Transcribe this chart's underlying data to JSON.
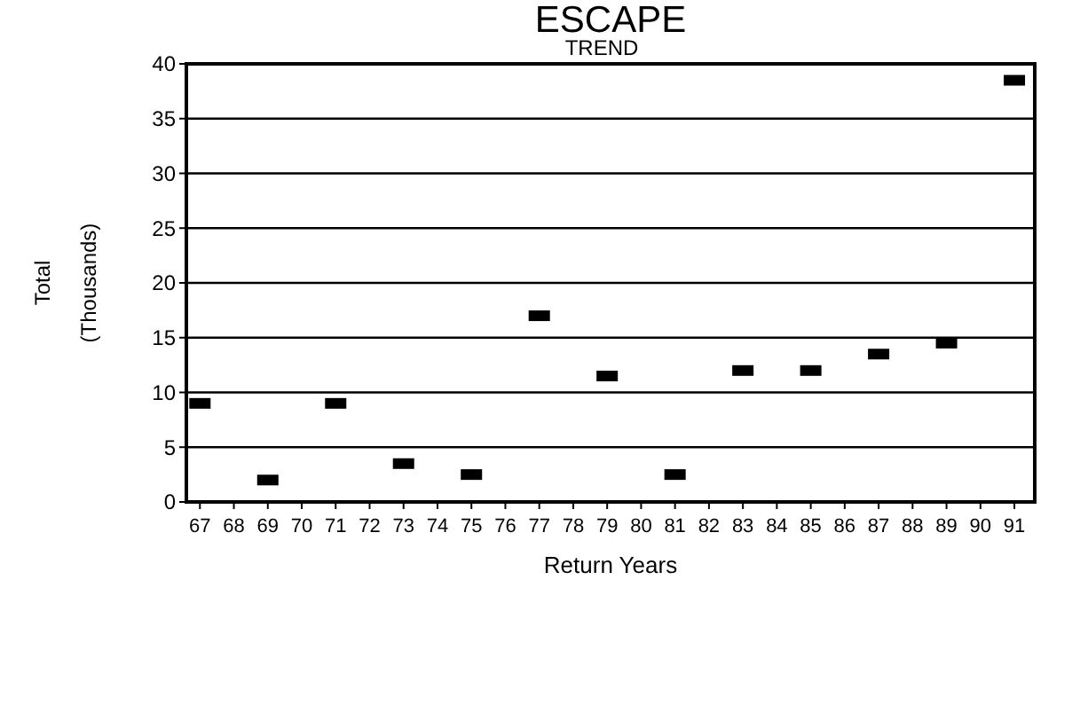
{
  "chart_data": {
    "type": "scatter",
    "title": "ESCAPE",
    "subtitle": "TREND",
    "xlabel": "Return Years",
    "ylabel": "Total (Thousands)",
    "x": [
      67,
      69,
      71,
      73,
      75,
      77,
      79,
      81,
      83,
      85,
      87,
      89,
      91
    ],
    "values": [
      9,
      2,
      9,
      3.5,
      2.5,
      17,
      11.5,
      2.5,
      12,
      12,
      13.5,
      14.5,
      38.5
    ],
    "color": "#000000",
    "marker": "square",
    "xlim": [
      66.6,
      91.6
    ],
    "xticks": [
      67,
      68,
      69,
      70,
      71,
      72,
      73,
      74,
      75,
      76,
      77,
      78,
      79,
      80,
      81,
      82,
      83,
      84,
      85,
      86,
      87,
      88,
      89,
      90,
      91
    ],
    "ylim": [
      0,
      40
    ],
    "yticks": [
      0,
      5,
      10,
      15,
      20,
      25,
      30,
      35,
      40
    ],
    "grid": "y"
  }
}
